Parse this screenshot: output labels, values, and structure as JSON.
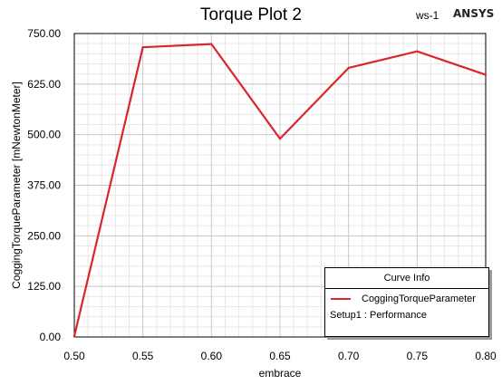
{
  "header": {
    "design_label": "ws-1",
    "brand": "ANSYS"
  },
  "legend": {
    "title": "Curve Info",
    "subtitle": "Setup1 : Performance"
  },
  "colors": {
    "series": "#d9262e",
    "grid_major": "#c8c8c8",
    "grid_minor": "#e8e8e8"
  },
  "chart_data": {
    "type": "line",
    "title": "Torque Plot 2",
    "xlabel": "embrace",
    "ylabel": "CoggingTorqueParameter [mNewtonMeter]",
    "xlim": [
      0.5,
      0.8
    ],
    "ylim": [
      0,
      750
    ],
    "xticks": [
      "0.50",
      "0.55",
      "0.60",
      "0.65",
      "0.70",
      "0.75",
      "0.80"
    ],
    "yticks": [
      "0.00",
      "125.00",
      "250.00",
      "375.00",
      "500.00",
      "625.00",
      "750.00"
    ],
    "grid": true,
    "legend_position": "bottom-right",
    "series": [
      {
        "name": "CoggingTorqueParameter",
        "x": [
          0.5,
          0.55,
          0.6,
          0.65,
          0.7,
          0.75,
          0.8
        ],
        "y": [
          2,
          716,
          724,
          490,
          665,
          706,
          648
        ]
      }
    ]
  }
}
